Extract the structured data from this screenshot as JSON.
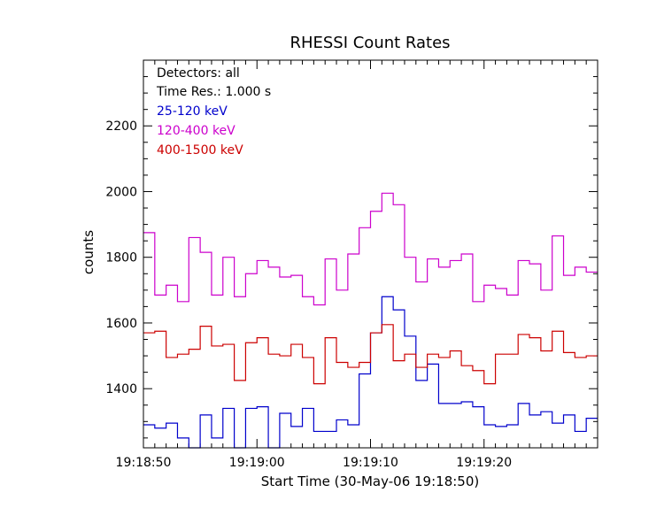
{
  "chart_data": {
    "type": "line",
    "step": true,
    "title": "RHESSI Count Rates",
    "xlabel": "Start Time (30-May-06 19:18:50)",
    "ylabel": "counts",
    "xlim": [
      0,
      40
    ],
    "ylim": [
      1220,
      2400
    ],
    "xticks": [
      0,
      10,
      20,
      30
    ],
    "xtick_labels": [
      "19:18:50",
      "19:19:00",
      "19:19:10",
      "19:19:20"
    ],
    "yticks": [
      1400,
      1600,
      1800,
      2000,
      2200
    ],
    "ytick_labels": [
      "1400",
      "1600",
      "1800",
      "2000",
      "2200"
    ],
    "grid": false,
    "legend_position": "top-left",
    "annotations": [
      "Detectors: all",
      "Time Res.: 1.000 s"
    ],
    "series": [
      {
        "name": "25-120 keV",
        "color": "#0000cc",
        "values": [
          1290,
          1280,
          1295,
          1250,
          1220,
          1320,
          1250,
          1340,
          1220,
          1340,
          1345,
          1220,
          1325,
          1285,
          1340,
          1270,
          1270,
          1305,
          1290,
          1445,
          1570,
          1680,
          1640,
          1560,
          1425,
          1475,
          1355,
          1355,
          1360,
          1345,
          1290,
          1285,
          1290,
          1355,
          1320,
          1330,
          1295,
          1320,
          1270,
          1310
        ]
      },
      {
        "name": "120-400 keV",
        "color": "#cc00cc",
        "values": [
          1875,
          1685,
          1715,
          1665,
          1860,
          1815,
          1685,
          1800,
          1680,
          1750,
          1790,
          1770,
          1740,
          1745,
          1680,
          1655,
          1795,
          1700,
          1810,
          1890,
          1940,
          1995,
          1960,
          1800,
          1725,
          1795,
          1770,
          1790,
          1810,
          1665,
          1715,
          1705,
          1685,
          1790,
          1780,
          1700,
          1865,
          1745,
          1770,
          1755
        ]
      },
      {
        "name": "400-1500 keV",
        "color": "#cc0000",
        "values": [
          1570,
          1575,
          1495,
          1505,
          1520,
          1590,
          1530,
          1535,
          1425,
          1540,
          1555,
          1505,
          1500,
          1535,
          1495,
          1415,
          1555,
          1480,
          1465,
          1480,
          1570,
          1595,
          1485,
          1505,
          1465,
          1505,
          1495,
          1515,
          1470,
          1455,
          1415,
          1505,
          1505,
          1565,
          1555,
          1515,
          1575,
          1510,
          1495,
          1500
        ]
      }
    ]
  }
}
